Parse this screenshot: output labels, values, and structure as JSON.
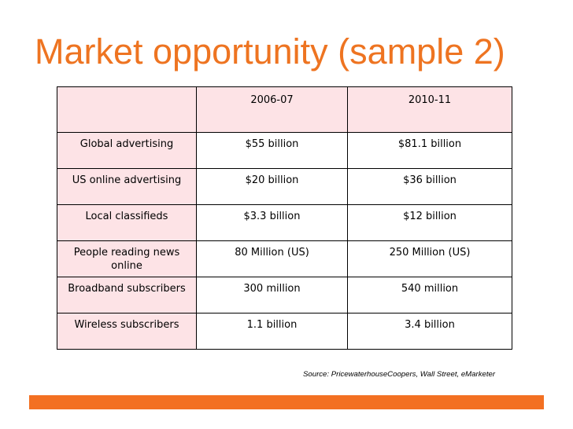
{
  "slide": {
    "title": "Market opportunity (sample 2)",
    "source": "Source: PricewaterhouseCoopers, Wall Street, eMarketer",
    "accent_color": "#ee7421",
    "footer_bar_color": "#f37022",
    "header_fill_color": "#fde3e6"
  },
  "table": {
    "columns": [
      "",
      "2006-07",
      "2010-11"
    ],
    "rows": [
      {
        "label": "Global advertising",
        "values": [
          "$55 billion",
          "$81.1 billion"
        ]
      },
      {
        "label": "US online advertising",
        "values": [
          "$20 billion",
          "$36 billion"
        ]
      },
      {
        "label": "Local classifieds",
        "values": [
          "$3.3 billion",
          "$12 billion"
        ]
      },
      {
        "label": "People reading news online",
        "values": [
          "80 Million (US)",
          "250 Million (US)"
        ]
      },
      {
        "label": "Broadband subscribers",
        "values": [
          "300 million",
          "540 million"
        ]
      },
      {
        "label": "Wireless subscribers",
        "values": [
          "1.1 billion",
          "3.4 billion"
        ]
      }
    ]
  }
}
